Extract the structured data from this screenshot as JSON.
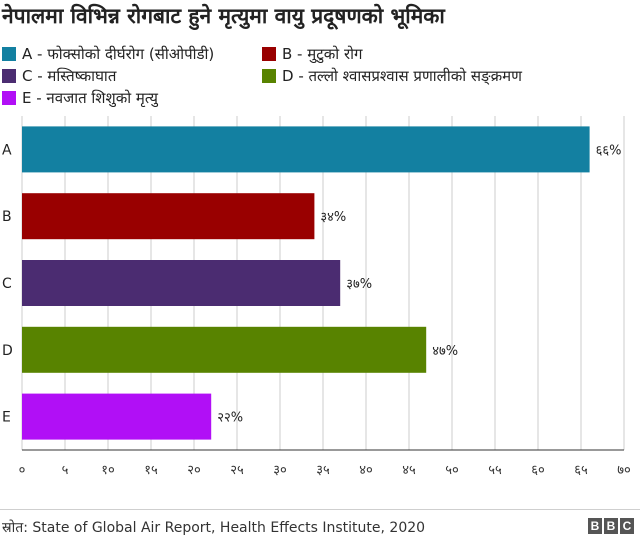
{
  "title": "नेपालमा विभिन्न रोगबाट हुने मृत्युमा वायु प्रदूषणको भूमिका",
  "legend": [
    {
      "code": "A",
      "label": "A - फोक्सोको दीर्घरोग (सीओपीडी)",
      "color": "#1380a1"
    },
    {
      "code": "B",
      "label": "B - मुटुको रोग",
      "color": "#990000"
    },
    {
      "code": "C",
      "label": "C - मस्तिष्काघात",
      "color": "#4b2c71"
    },
    {
      "code": "D",
      "label": "D - तल्लो श्वासप्रश्वास प्रणालीको सङ्क्रमण",
      "color": "#588300"
    },
    {
      "code": "E",
      "label": "E - नवजात शिशुको मृत्यु",
      "color": "#b10ff6"
    }
  ],
  "chart_data": {
    "type": "bar",
    "orientation": "horizontal",
    "categories": [
      "A",
      "B",
      "C",
      "D",
      "E"
    ],
    "values": [
      66,
      34,
      37,
      47,
      22
    ],
    "value_labels": [
      "६६%",
      "३४%",
      "३७%",
      "४७%",
      "२२%"
    ],
    "colors": [
      "#1380a1",
      "#990000",
      "#4b2c71",
      "#588300",
      "#b10ff6"
    ],
    "xlim": [
      0,
      70
    ],
    "x_ticks": [
      0,
      5,
      10,
      15,
      20,
      25,
      30,
      35,
      40,
      45,
      50,
      55,
      60,
      65,
      70
    ],
    "x_tick_labels": [
      "०",
      "५",
      "१०",
      "१५",
      "२०",
      "२५",
      "३०",
      "३५",
      "४०",
      "४५",
      "५०",
      "५५",
      "६०",
      "६५",
      "७०"
    ],
    "grid": true
  },
  "footer": {
    "source": "स्रोत: State of Global Air Report, Health Effects Institute, 2020",
    "brand": [
      "B",
      "B",
      "C"
    ]
  }
}
